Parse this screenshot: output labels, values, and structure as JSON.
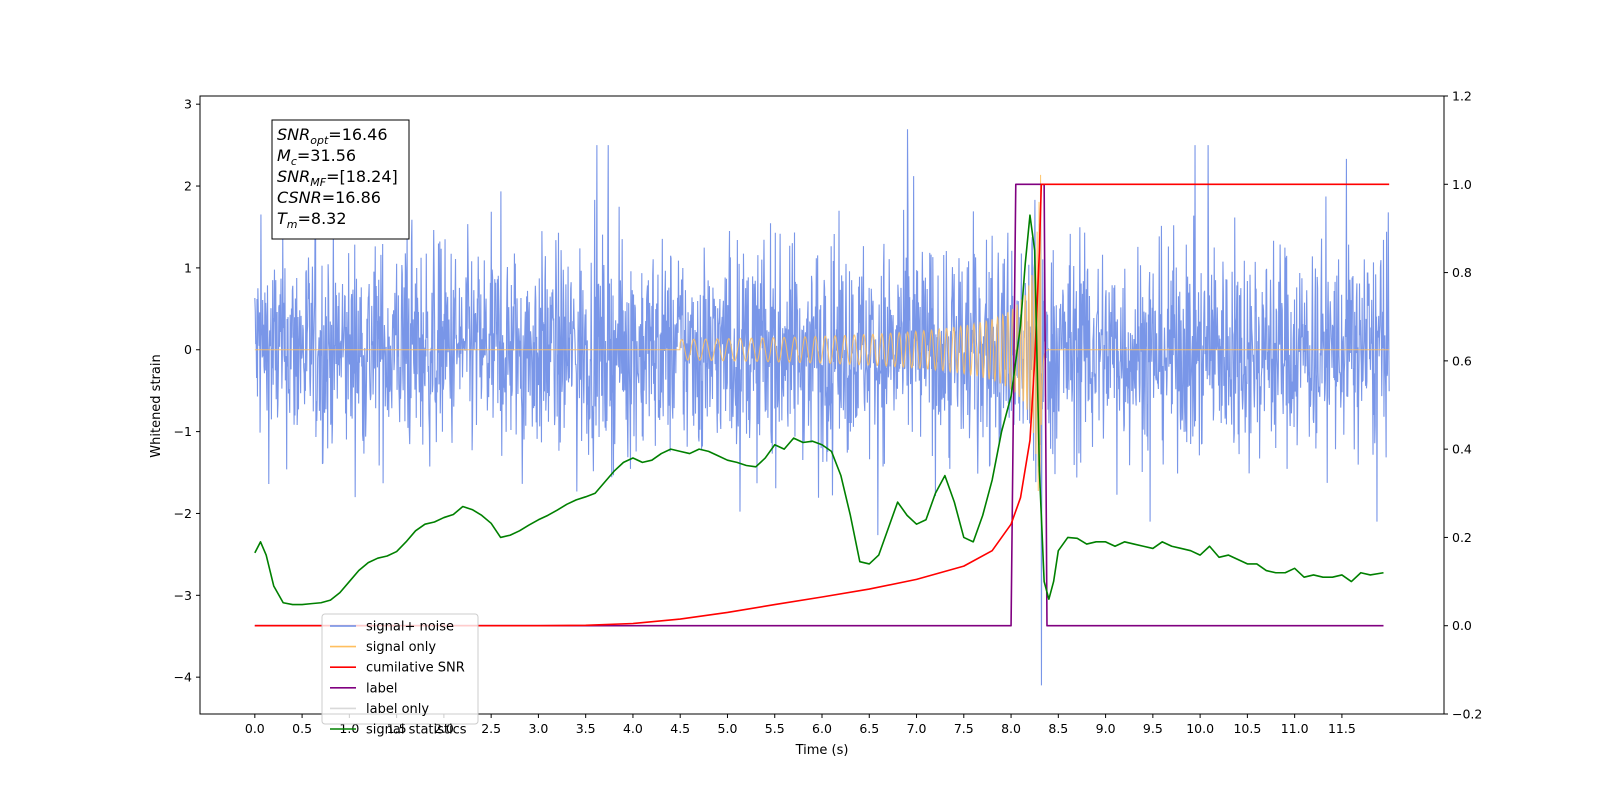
{
  "chart_data": {
    "type": "line",
    "xlabel": "Time (s)",
    "ylabel": "Whitened strain",
    "xlim": [
      -0.58,
      12.58
    ],
    "ylim_left": [
      -4.45,
      3.1
    ],
    "ylim_right": [
      -0.2,
      1.2
    ],
    "x_ticks": [
      "0.0",
      "0.5",
      "1.0",
      "1.5",
      "2.0",
      "2.5",
      "3.0",
      "3.5",
      "4.0",
      "4.5",
      "5.0",
      "5.5",
      "6.0",
      "6.5",
      "7.0",
      "7.5",
      "8.0",
      "8.5",
      "9.0",
      "9.5",
      "10.0",
      "10.5",
      "11.0",
      "11.5"
    ],
    "y_ticks_left": [
      "3",
      "2",
      "1",
      "0",
      "−1",
      "−2",
      "−3",
      "−4"
    ],
    "y_ticks_right": [
      "1.2",
      "1.0",
      "0.8",
      "0.6",
      "0.4",
      "0.2",
      "0.0",
      "−0.2"
    ],
    "annotation": {
      "lines": [
        {
          "main": "SNR",
          "sub": "opt",
          "value": "=16.46"
        },
        {
          "main": "M",
          "sub": "c",
          "value": "=31.56"
        },
        {
          "main": "SNR",
          "sub": "MF",
          "value": "=[18.24]"
        },
        {
          "main": "CSNR",
          "sub": "",
          "value": "=16.86"
        },
        {
          "main": "T",
          "sub": "m",
          "value": "=8.32"
        }
      ]
    },
    "legend": {
      "position": "lower-left",
      "entries": [
        {
          "label": "signal+ noise",
          "color": "#6a8be6"
        },
        {
          "label": "signal only",
          "color": "#ffbf5f"
        },
        {
          "label": "cumilative SNR",
          "color": "#ff0000"
        },
        {
          "label": "label",
          "color": "#800080"
        },
        {
          "label": "label only",
          "color": "#d9d9d9"
        },
        {
          "label": "signal statistics",
          "color": "#008000"
        }
      ]
    },
    "series": [
      {
        "name": "signal+ noise",
        "axis": "left",
        "color": "#6a8be6",
        "x_range": [
          0.0,
          12.0
        ],
        "typical_amplitude": 1.3,
        "peak_max": 2.75,
        "peak_min": -4.1,
        "peak_time": 8.32
      },
      {
        "name": "signal only",
        "axis": "left",
        "color": "#ffbf5f",
        "x_range": [
          0.0,
          12.0
        ],
        "chirp_start": 4.5,
        "merger_time": 8.32,
        "peak_amplitude": 2.25
      },
      {
        "name": "cumilative SNR",
        "axis": "right",
        "color": "#ff0000",
        "x": [
          0.0,
          3.0,
          3.5,
          4.0,
          4.5,
          5.0,
          5.5,
          6.0,
          6.5,
          7.0,
          7.5,
          7.8,
          8.0,
          8.1,
          8.2,
          8.25,
          8.3,
          8.32,
          12.0
        ],
        "y": [
          0.0,
          0.0,
          0.001,
          0.005,
          0.015,
          0.03,
          0.048,
          0.065,
          0.083,
          0.105,
          0.135,
          0.17,
          0.23,
          0.29,
          0.42,
          0.6,
          0.85,
          1.0,
          1.0
        ]
      },
      {
        "name": "label",
        "axis": "right",
        "color": "#800080",
        "x": [
          0.0,
          8.0,
          8.05,
          8.35,
          8.38,
          11.94
        ],
        "y": [
          0.0,
          0.0,
          1.0,
          1.0,
          0.0,
          0.0
        ]
      },
      {
        "name": "signal statistics",
        "axis": "right",
        "color": "#008000",
        "x": [
          0.0,
          0.06,
          0.12,
          0.2,
          0.3,
          0.4,
          0.5,
          0.6,
          0.7,
          0.8,
          0.9,
          1.0,
          1.1,
          1.2,
          1.3,
          1.4,
          1.5,
          1.6,
          1.7,
          1.8,
          1.9,
          2.0,
          2.1,
          2.2,
          2.3,
          2.4,
          2.5,
          2.6,
          2.7,
          2.8,
          2.9,
          3.0,
          3.1,
          3.2,
          3.3,
          3.4,
          3.5,
          3.6,
          3.7,
          3.8,
          3.9,
          4.0,
          4.1,
          4.2,
          4.3,
          4.4,
          4.5,
          4.6,
          4.7,
          4.8,
          4.9,
          5.0,
          5.1,
          5.2,
          5.3,
          5.4,
          5.5,
          5.6,
          5.7,
          5.8,
          5.9,
          6.0,
          6.1,
          6.2,
          6.3,
          6.4,
          6.5,
          6.6,
          6.7,
          6.8,
          6.9,
          7.0,
          7.1,
          7.2,
          7.3,
          7.4,
          7.5,
          7.6,
          7.7,
          7.8,
          7.9,
          8.0,
          8.1,
          8.15,
          8.2,
          8.25,
          8.3,
          8.35,
          8.4,
          8.45,
          8.5,
          8.6,
          8.7,
          8.8,
          8.9,
          9.0,
          9.1,
          9.2,
          9.3,
          9.4,
          9.5,
          9.6,
          9.7,
          9.8,
          9.9,
          10.0,
          10.1,
          10.2,
          10.3,
          10.4,
          10.5,
          10.6,
          10.7,
          10.8,
          10.9,
          11.0,
          11.1,
          11.2,
          11.3,
          11.4,
          11.5,
          11.6,
          11.7,
          11.8,
          11.94
        ],
        "y": [
          0.165,
          0.19,
          0.16,
          0.09,
          0.052,
          0.048,
          0.048,
          0.05,
          0.052,
          0.058,
          0.075,
          0.1,
          0.125,
          0.143,
          0.153,
          0.158,
          0.168,
          0.19,
          0.215,
          0.23,
          0.235,
          0.245,
          0.252,
          0.27,
          0.263,
          0.25,
          0.232,
          0.2,
          0.205,
          0.215,
          0.228,
          0.24,
          0.25,
          0.262,
          0.275,
          0.285,
          0.292,
          0.3,
          0.325,
          0.35,
          0.37,
          0.38,
          0.37,
          0.375,
          0.39,
          0.4,
          0.395,
          0.39,
          0.4,
          0.395,
          0.385,
          0.375,
          0.37,
          0.363,
          0.36,
          0.38,
          0.41,
          0.4,
          0.425,
          0.415,
          0.418,
          0.41,
          0.395,
          0.34,
          0.25,
          0.145,
          0.14,
          0.16,
          0.22,
          0.28,
          0.25,
          0.23,
          0.24,
          0.3,
          0.34,
          0.28,
          0.2,
          0.19,
          0.25,
          0.33,
          0.44,
          0.52,
          0.68,
          0.82,
          0.93,
          0.85,
          0.35,
          0.1,
          0.06,
          0.1,
          0.17,
          0.2,
          0.198,
          0.185,
          0.19,
          0.19,
          0.18,
          0.19,
          0.185,
          0.18,
          0.175,
          0.19,
          0.18,
          0.175,
          0.17,
          0.16,
          0.18,
          0.155,
          0.16,
          0.15,
          0.14,
          0.14,
          0.125,
          0.12,
          0.12,
          0.13,
          0.11,
          0.115,
          0.11,
          0.11,
          0.115,
          0.1,
          0.12,
          0.115,
          0.12
        ]
      }
    ]
  }
}
